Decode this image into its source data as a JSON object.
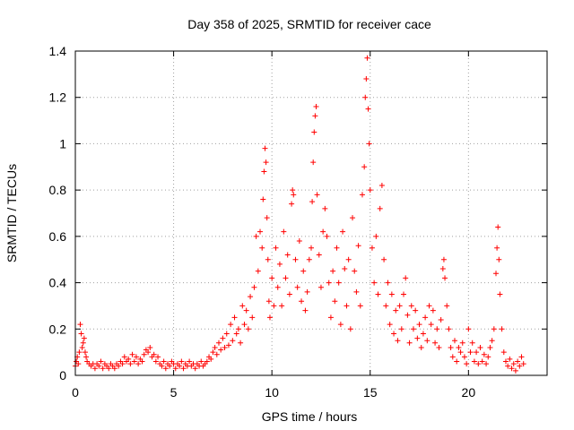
{
  "chart_data": {
    "type": "scatter",
    "title": "Day 358 of 2025, SRMTID for receiver cace",
    "xlabel": "GPS time / hours",
    "ylabel": "SRMTID / TECUs",
    "xlim": [
      0,
      24
    ],
    "ylim": [
      0,
      1.4
    ],
    "xticks": [
      0,
      5,
      10,
      15,
      20
    ],
    "xtick_labels": [
      "0",
      "5",
      "10",
      "15",
      "20"
    ],
    "yticks": [
      0,
      0.2,
      0.4,
      0.6,
      0.8,
      1,
      1.2,
      1.4
    ],
    "ytick_labels": [
      "0",
      "0.2",
      "0.4",
      "0.6",
      "0.8",
      "1",
      "1.2",
      "1.4"
    ],
    "grid": true,
    "marker": "+",
    "series": [
      {
        "name": "SRMTID",
        "color": "#ff0000",
        "points": [
          [
            0.0,
            0.04
          ],
          [
            0.05,
            0.06
          ],
          [
            0.1,
            0.08
          ],
          [
            0.15,
            0.05
          ],
          [
            0.2,
            0.1
          ],
          [
            0.25,
            0.22
          ],
          [
            0.3,
            0.18
          ],
          [
            0.35,
            0.12
          ],
          [
            0.4,
            0.14
          ],
          [
            0.45,
            0.16
          ],
          [
            0.5,
            0.1
          ],
          [
            0.55,
            0.08
          ],
          [
            0.6,
            0.06
          ],
          [
            0.7,
            0.05
          ],
          [
            0.8,
            0.04
          ],
          [
            0.9,
            0.05
          ],
          [
            1.0,
            0.03
          ],
          [
            1.1,
            0.05
          ],
          [
            1.2,
            0.04
          ],
          [
            1.3,
            0.06
          ],
          [
            1.4,
            0.03
          ],
          [
            1.5,
            0.05
          ],
          [
            1.6,
            0.04
          ],
          [
            1.7,
            0.03
          ],
          [
            1.8,
            0.05
          ],
          [
            1.9,
            0.04
          ],
          [
            2.0,
            0.03
          ],
          [
            2.1,
            0.05
          ],
          [
            2.2,
            0.04
          ],
          [
            2.3,
            0.06
          ],
          [
            2.4,
            0.05
          ],
          [
            2.5,
            0.08
          ],
          [
            2.6,
            0.06
          ],
          [
            2.7,
            0.07
          ],
          [
            2.8,
            0.05
          ],
          [
            2.9,
            0.09
          ],
          [
            3.0,
            0.06
          ],
          [
            3.1,
            0.08
          ],
          [
            3.2,
            0.05
          ],
          [
            3.3,
            0.07
          ],
          [
            3.4,
            0.06
          ],
          [
            3.5,
            0.09
          ],
          [
            3.6,
            0.11
          ],
          [
            3.7,
            0.1
          ],
          [
            3.8,
            0.12
          ],
          [
            3.9,
            0.08
          ],
          [
            4.0,
            0.09
          ],
          [
            4.1,
            0.06
          ],
          [
            4.2,
            0.08
          ],
          [
            4.3,
            0.05
          ],
          [
            4.4,
            0.04
          ],
          [
            4.5,
            0.06
          ],
          [
            4.6,
            0.03
          ],
          [
            4.7,
            0.05
          ],
          [
            4.8,
            0.04
          ],
          [
            4.9,
            0.06
          ],
          [
            5.0,
            0.05
          ],
          [
            5.1,
            0.03
          ],
          [
            5.2,
            0.05
          ],
          [
            5.3,
            0.04
          ],
          [
            5.4,
            0.06
          ],
          [
            5.5,
            0.03
          ],
          [
            5.6,
            0.05
          ],
          [
            5.7,
            0.04
          ],
          [
            5.8,
            0.06
          ],
          [
            5.9,
            0.04
          ],
          [
            6.0,
            0.05
          ],
          [
            6.1,
            0.03
          ],
          [
            6.2,
            0.05
          ],
          [
            6.3,
            0.04
          ],
          [
            6.4,
            0.06
          ],
          [
            6.5,
            0.04
          ],
          [
            6.6,
            0.05
          ],
          [
            6.7,
            0.06
          ],
          [
            6.8,
            0.08
          ],
          [
            6.9,
            0.07
          ],
          [
            7.0,
            0.1
          ],
          [
            7.1,
            0.12
          ],
          [
            7.2,
            0.09
          ],
          [
            7.3,
            0.14
          ],
          [
            7.4,
            0.11
          ],
          [
            7.5,
            0.16
          ],
          [
            7.6,
            0.12
          ],
          [
            7.7,
            0.18
          ],
          [
            7.8,
            0.13
          ],
          [
            7.9,
            0.22
          ],
          [
            8.0,
            0.15
          ],
          [
            8.1,
            0.25
          ],
          [
            8.2,
            0.18
          ],
          [
            8.3,
            0.2
          ],
          [
            8.4,
            0.14
          ],
          [
            8.5,
            0.3
          ],
          [
            8.6,
            0.22
          ],
          [
            8.7,
            0.28
          ],
          [
            8.8,
            0.2
          ],
          [
            8.9,
            0.34
          ],
          [
            9.0,
            0.25
          ],
          [
            9.1,
            0.38
          ],
          [
            9.2,
            0.6
          ],
          [
            9.3,
            0.45
          ],
          [
            9.4,
            0.62
          ],
          [
            9.5,
            0.55
          ],
          [
            9.55,
            0.76
          ],
          [
            9.6,
            0.88
          ],
          [
            9.65,
            0.98
          ],
          [
            9.7,
            0.92
          ],
          [
            9.75,
            0.68
          ],
          [
            9.8,
            0.5
          ],
          [
            9.85,
            0.32
          ],
          [
            9.9,
            0.25
          ],
          [
            10.0,
            0.42
          ],
          [
            10.1,
            0.3
          ],
          [
            10.2,
            0.55
          ],
          [
            10.3,
            0.38
          ],
          [
            10.4,
            0.48
          ],
          [
            10.5,
            0.3
          ],
          [
            10.6,
            0.62
          ],
          [
            10.7,
            0.42
          ],
          [
            10.8,
            0.52
          ],
          [
            10.9,
            0.35
          ],
          [
            11.0,
            0.74
          ],
          [
            11.05,
            0.8
          ],
          [
            11.1,
            0.78
          ],
          [
            11.2,
            0.5
          ],
          [
            11.3,
            0.38
          ],
          [
            11.4,
            0.58
          ],
          [
            11.5,
            0.32
          ],
          [
            11.6,
            0.45
          ],
          [
            11.7,
            0.28
          ],
          [
            11.8,
            0.36
          ],
          [
            11.9,
            0.5
          ],
          [
            12.0,
            0.55
          ],
          [
            12.05,
            0.75
          ],
          [
            12.1,
            0.92
          ],
          [
            12.15,
            1.05
          ],
          [
            12.2,
            1.12
          ],
          [
            12.25,
            1.16
          ],
          [
            12.3,
            0.78
          ],
          [
            12.4,
            0.52
          ],
          [
            12.5,
            0.38
          ],
          [
            12.6,
            0.62
          ],
          [
            12.7,
            0.72
          ],
          [
            12.8,
            0.6
          ],
          [
            12.9,
            0.4
          ],
          [
            13.0,
            0.25
          ],
          [
            13.1,
            0.45
          ],
          [
            13.2,
            0.32
          ],
          [
            13.3,
            0.55
          ],
          [
            13.4,
            0.4
          ],
          [
            13.5,
            0.22
          ],
          [
            13.6,
            0.62
          ],
          [
            13.7,
            0.46
          ],
          [
            13.8,
            0.3
          ],
          [
            13.9,
            0.5
          ],
          [
            14.0,
            0.2
          ],
          [
            14.1,
            0.68
          ],
          [
            14.2,
            0.45
          ],
          [
            14.3,
            0.36
          ],
          [
            14.4,
            0.56
          ],
          [
            14.5,
            0.3
          ],
          [
            14.6,
            0.78
          ],
          [
            14.7,
            0.9
          ],
          [
            14.75,
            1.2
          ],
          [
            14.8,
            1.28
          ],
          [
            14.85,
            1.37
          ],
          [
            14.9,
            1.15
          ],
          [
            14.95,
            1.0
          ],
          [
            15.0,
            0.8
          ],
          [
            15.1,
            0.55
          ],
          [
            15.2,
            0.4
          ],
          [
            15.3,
            0.6
          ],
          [
            15.4,
            0.35
          ],
          [
            15.5,
            0.72
          ],
          [
            15.6,
            0.82
          ],
          [
            15.7,
            0.5
          ],
          [
            15.8,
            0.3
          ],
          [
            15.9,
            0.4
          ],
          [
            16.0,
            0.22
          ],
          [
            16.1,
            0.35
          ],
          [
            16.2,
            0.18
          ],
          [
            16.3,
            0.28
          ],
          [
            16.4,
            0.15
          ],
          [
            16.5,
            0.3
          ],
          [
            16.6,
            0.2
          ],
          [
            16.7,
            0.35
          ],
          [
            16.8,
            0.42
          ],
          [
            16.9,
            0.26
          ],
          [
            17.0,
            0.14
          ],
          [
            17.1,
            0.3
          ],
          [
            17.2,
            0.2
          ],
          [
            17.3,
            0.28
          ],
          [
            17.4,
            0.16
          ],
          [
            17.5,
            0.22
          ],
          [
            17.6,
            0.12
          ],
          [
            17.7,
            0.18
          ],
          [
            17.8,
            0.25
          ],
          [
            17.9,
            0.15
          ],
          [
            18.0,
            0.3
          ],
          [
            18.1,
            0.22
          ],
          [
            18.2,
            0.28
          ],
          [
            18.3,
            0.14
          ],
          [
            18.4,
            0.2
          ],
          [
            18.5,
            0.12
          ],
          [
            18.6,
            0.24
          ],
          [
            18.7,
            0.46
          ],
          [
            18.75,
            0.5
          ],
          [
            18.8,
            0.42
          ],
          [
            18.9,
            0.3
          ],
          [
            19.0,
            0.2
          ],
          [
            19.1,
            0.12
          ],
          [
            19.2,
            0.08
          ],
          [
            19.3,
            0.15
          ],
          [
            19.4,
            0.06
          ],
          [
            19.5,
            0.12
          ],
          [
            19.6,
            0.1
          ],
          [
            19.7,
            0.14
          ],
          [
            19.8,
            0.08
          ],
          [
            19.9,
            0.05
          ],
          [
            20.0,
            0.2
          ],
          [
            20.1,
            0.1
          ],
          [
            20.2,
            0.14
          ],
          [
            20.3,
            0.06
          ],
          [
            20.4,
            0.1
          ],
          [
            20.5,
            0.05
          ],
          [
            20.6,
            0.12
          ],
          [
            20.7,
            0.06
          ],
          [
            20.8,
            0.09
          ],
          [
            20.9,
            0.05
          ],
          [
            21.0,
            0.08
          ],
          [
            21.1,
            0.12
          ],
          [
            21.2,
            0.15
          ],
          [
            21.3,
            0.2
          ],
          [
            21.4,
            0.44
          ],
          [
            21.45,
            0.55
          ],
          [
            21.5,
            0.64
          ],
          [
            21.55,
            0.5
          ],
          [
            21.6,
            0.35
          ],
          [
            21.7,
            0.2
          ],
          [
            21.8,
            0.1
          ],
          [
            21.9,
            0.06
          ],
          [
            22.0,
            0.04
          ],
          [
            22.1,
            0.07
          ],
          [
            22.2,
            0.03
          ],
          [
            22.3,
            0.05
          ],
          [
            22.4,
            0.02
          ],
          [
            22.5,
            0.06
          ],
          [
            22.6,
            0.04
          ],
          [
            22.7,
            0.08
          ],
          [
            22.8,
            0.05
          ]
        ]
      }
    ]
  }
}
